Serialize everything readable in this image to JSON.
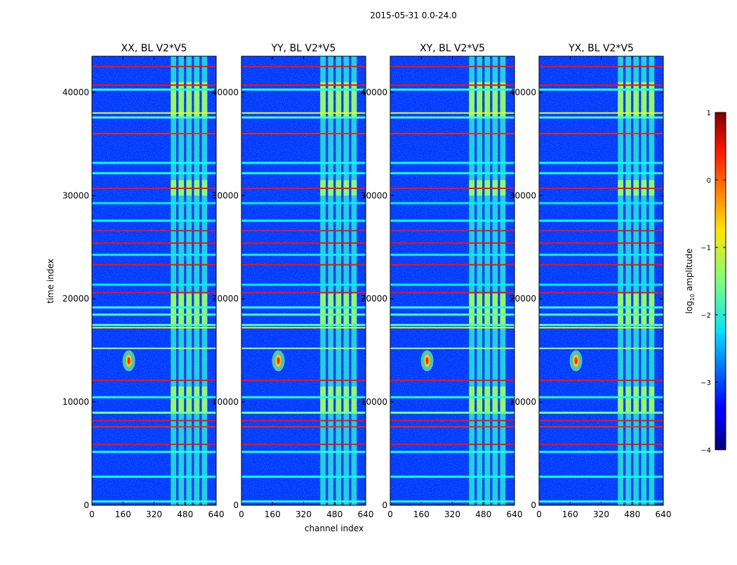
{
  "figure": {
    "title": "2015-05-31 0.0-24.0",
    "xlabel": "channel index",
    "ylabel": "time index",
    "colorbar_label_prefix": "log",
    "colorbar_label_sub": "10",
    "colorbar_label_suffix": " amplitude"
  },
  "chart_data": {
    "type": "heatmap",
    "panels": [
      {
        "title": "XX, BL V2*V5",
        "interference_box": true
      },
      {
        "title": "YY, BL V2*V5",
        "interference_box": true
      },
      {
        "title": "XY, BL V2*V5",
        "interference_box": true
      },
      {
        "title": "YX, BL V2*V5",
        "interference_box": true
      }
    ],
    "x_ticks": [
      0,
      160,
      320,
      480,
      640
    ],
    "x_tick_labels": [
      "0",
      "160",
      "320",
      "480",
      "640"
    ],
    "y_ticks": [
      0,
      10000,
      20000,
      30000,
      40000
    ],
    "y_tick_labels": [
      "0",
      "10000",
      "20000",
      "30000",
      "40000"
    ],
    "xlim": [
      0,
      640
    ],
    "ylim": [
      0,
      43500
    ],
    "colormap": "jet",
    "colorbar": {
      "range": [
        -4,
        1
      ],
      "ticks": [
        -4,
        -3,
        -2,
        -1,
        0,
        1
      ],
      "tick_labels": [
        "−4",
        "−3",
        "−2",
        "−1",
        "0",
        "1"
      ]
    },
    "features": {
      "background_level": -3.1,
      "interference_channel_range": [
        400,
        600
      ],
      "interference_level": -1.9,
      "interference_strong_time_ranges": [
        [
          37500,
          41000
        ],
        [
          17500,
          20500
        ],
        [
          9000,
          11500
        ],
        [
          30000,
          31500
        ]
      ],
      "interference_strong_level": -1.3,
      "rfi_source": {
        "channel": 190,
        "time": 14000,
        "peak_level": 0.2
      },
      "horizontal_lines": [
        {
          "time": 42500,
          "level": 0.3
        },
        {
          "time": 40700,
          "level": 0.3
        },
        {
          "time": 40300,
          "level": -2.0
        },
        {
          "time": 38000,
          "level": -1.0
        },
        {
          "time": 37600,
          "level": -1.8
        },
        {
          "time": 36000,
          "level": 0.2
        },
        {
          "time": 33200,
          "level": -2.1
        },
        {
          "time": 32200,
          "level": -2.1
        },
        {
          "time": 30700,
          "level": 0.3
        },
        {
          "time": 29300,
          "level": -2.2
        },
        {
          "time": 27600,
          "level": -2.1
        },
        {
          "time": 26600,
          "level": 0.3
        },
        {
          "time": 25400,
          "level": 0.3
        },
        {
          "time": 24300,
          "level": -2.2
        },
        {
          "time": 23300,
          "level": 0.3
        },
        {
          "time": 21400,
          "level": -2.2
        },
        {
          "time": 20600,
          "level": 0.3
        },
        {
          "time": 19200,
          "level": -2.0
        },
        {
          "time": 18500,
          "level": -1.8
        },
        {
          "time": 17500,
          "level": -1.8
        },
        {
          "time": 17200,
          "level": -1.0
        },
        {
          "time": 15200,
          "level": -1.2
        },
        {
          "time": 12100,
          "level": 0.3
        },
        {
          "time": 10500,
          "level": -2.0
        },
        {
          "time": 9000,
          "level": -1.6
        },
        {
          "time": 8200,
          "level": 0.3
        },
        {
          "time": 7600,
          "level": 0.2
        },
        {
          "time": 5900,
          "level": 0.3
        },
        {
          "time": 5200,
          "level": -2.0
        },
        {
          "time": 2800,
          "level": -2.1
        },
        {
          "time": 400,
          "level": -2.0
        }
      ]
    }
  }
}
